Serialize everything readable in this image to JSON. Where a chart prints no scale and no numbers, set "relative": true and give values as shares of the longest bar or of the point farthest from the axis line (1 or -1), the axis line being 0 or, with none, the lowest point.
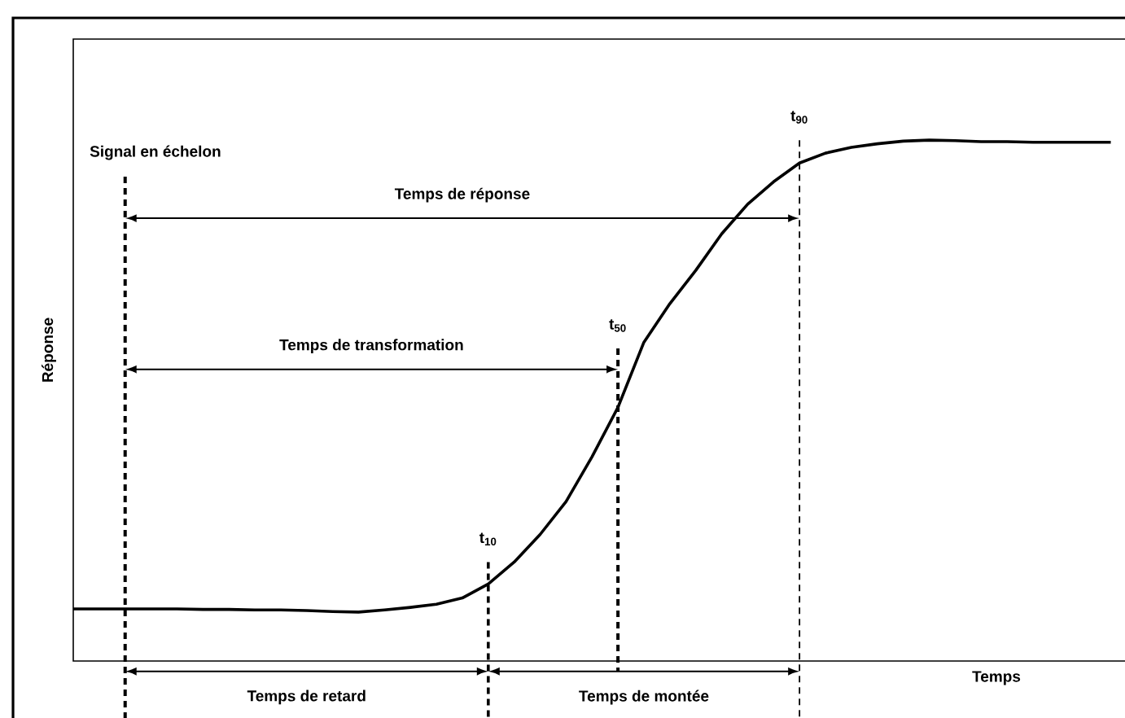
{
  "chart_data": {
    "type": "line",
    "relative": true,
    "xlabel": "Temps",
    "ylabel": "Réponse",
    "marker": "none",
    "categories": [
      null,
      null,
      null,
      null,
      null,
      null,
      null,
      null,
      null,
      null,
      null,
      null,
      null,
      null,
      null,
      null,
      null,
      null,
      null,
      null,
      null,
      null,
      null,
      null,
      null,
      null,
      null,
      null,
      null,
      null,
      null,
      null,
      null,
      null,
      null,
      null,
      null,
      null,
      null,
      null,
      null
    ],
    "series": [
      {
        "color": "#000000",
        "values": [
          0.1,
          0.1,
          0.1,
          0.1,
          0.1,
          0.099,
          0.099,
          0.098,
          0.098,
          0.097,
          0.095,
          0.094,
          0.098,
          0.103,
          0.109,
          0.121,
          0.148,
          0.19,
          0.243,
          0.306,
          0.392,
          0.487,
          0.612,
          0.686,
          0.75,
          0.82,
          0.877,
          0.92,
          0.956,
          0.975,
          0.986,
          0.993,
          0.998,
          1.0,
          0.999,
          0.997,
          0.997,
          0.996,
          0.996,
          0.996,
          0.996
        ]
      }
    ],
    "annotations": [
      "Temps de réponse",
      "Temps de transformation",
      "Temps de retard",
      "Temps de montée",
      "Signal en échelon",
      "t$_{10}$",
      "t$_{50}$",
      "t$_{90}$"
    ]
  }
}
